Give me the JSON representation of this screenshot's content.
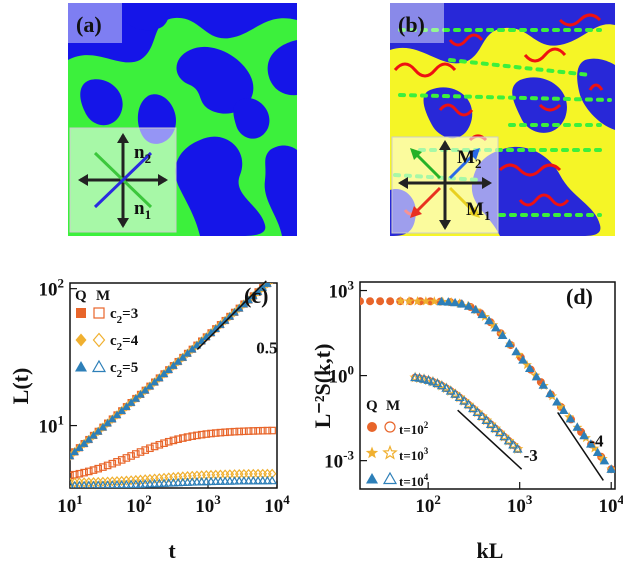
{
  "panels": {
    "a": {
      "label": "(a)",
      "inset": {
        "n2": "n",
        "n2_sub": "2",
        "n1": "n",
        "n1_sub": "1"
      }
    },
    "b": {
      "label": "(b)",
      "inset": {
        "m2": "M",
        "m2_sub": "2",
        "m1": "M",
        "m1_sub": "1"
      }
    }
  },
  "colors": {
    "blue": "#1515e8",
    "green": "#3cf03c",
    "yellow": "#f5f526",
    "red": "#ee1111",
    "orange": "#e8652a",
    "gold": "#f0b030",
    "steel": "#2d7fb8"
  },
  "chart_data": [
    {
      "id": "c",
      "type": "scatter",
      "panel_label": "(c)",
      "xlabel": "t",
      "ylabel": "L(t)",
      "xscale": "log",
      "yscale": "log",
      "xlim": [
        10,
        10000
      ],
      "ylim": [
        3.5,
        110
      ],
      "xticks": [
        {
          "v": 10,
          "b": "10",
          "e": "1"
        },
        {
          "v": 100,
          "b": "10",
          "e": "2"
        },
        {
          "v": 1000,
          "b": "10",
          "e": "3"
        },
        {
          "v": 10000,
          "b": "10",
          "e": "4"
        }
      ],
      "yticks": [
        {
          "v": 10,
          "b": "10",
          "e": "1"
        },
        {
          "v": 100,
          "b": "10",
          "e": "2"
        }
      ],
      "legend_header": {
        "q": "Q",
        "m": "M"
      },
      "legend": [
        {
          "label": "c",
          "sub": "2",
          "rest": "=3",
          "color": "#e8652a",
          "marker": "square"
        },
        {
          "label": "c",
          "sub": "2",
          "rest": "=4",
          "color": "#f0b030",
          "marker": "diamond"
        },
        {
          "label": "c",
          "sub": "2",
          "rest": "=5",
          "color": "#2d7fb8",
          "marker": "triangle"
        }
      ],
      "reference_line": {
        "slope_label": "0.5",
        "x": [
          700,
          7000
        ],
        "y": [
          36,
          114
        ]
      },
      "series": [
        {
          "name": "Q c2=3",
          "marker": "square",
          "filled": true,
          "color": "#e8652a",
          "model": "power",
          "x_range": [
            10,
            8500
          ],
          "y_start": 6.0,
          "exponent": 0.44
        },
        {
          "name": "Q c2=4",
          "marker": "diamond",
          "filled": true,
          "color": "#f0b030",
          "model": "power",
          "x_range": [
            10,
            8500
          ],
          "y_start": 6.0,
          "exponent": 0.44
        },
        {
          "name": "Q c2=5",
          "marker": "triangle",
          "filled": true,
          "color": "#2d7fb8",
          "model": "power",
          "x_range": [
            10,
            8500
          ],
          "y_start": 6.0,
          "exponent": 0.44
        },
        {
          "name": "M c2=3",
          "marker": "square",
          "filled": false,
          "color": "#e8652a",
          "model": "saturate",
          "x_range": [
            10,
            8500
          ],
          "y_start": 3.9,
          "y_end": 9.2,
          "t_half": 120
        },
        {
          "name": "M c2=4",
          "marker": "diamond",
          "filled": false,
          "color": "#f0b030",
          "model": "saturate",
          "x_range": [
            10,
            8500
          ],
          "y_start": 3.8,
          "y_end": 4.45,
          "t_half": 200
        },
        {
          "name": "M c2=5",
          "marker": "triangle",
          "filled": false,
          "color": "#2d7fb8",
          "model": "saturate",
          "x_range": [
            10,
            8500
          ],
          "y_start": 3.62,
          "y_end": 3.95,
          "t_half": 250
        }
      ]
    },
    {
      "id": "d",
      "type": "scatter",
      "panel_label": "(d)",
      "xlabel": "kL",
      "ylabel": "L⁻²S(k,t)",
      "xscale": "log",
      "yscale": "log",
      "xlim": [
        18,
        11000
      ],
      "ylim": [
        0.0001,
        2000
      ],
      "xticks": [
        {
          "v": 100,
          "b": "10",
          "e": "2"
        },
        {
          "v": 1000,
          "b": "10",
          "e": "3"
        },
        {
          "v": 10000,
          "b": "10",
          "e": "4"
        }
      ],
      "yticks": [
        {
          "v": 0.001,
          "b": "10",
          "e": "-3"
        },
        {
          "v": 1,
          "b": "10",
          "e": "0"
        },
        {
          "v": 1000,
          "b": "10",
          "e": "3"
        }
      ],
      "legend_header": {
        "q": "Q",
        "m": "M"
      },
      "legend": [
        {
          "label": "t=10",
          "sup": "2",
          "color": "#e8652a",
          "marker": "circle"
        },
        {
          "label": "t=10",
          "sup": "3",
          "color": "#f0b030",
          "marker": "star"
        },
        {
          "label": "t=10",
          "sup": "4",
          "color": "#2d7fb8",
          "marker": "triangle"
        }
      ],
      "reference_lines": [
        {
          "label": "-3",
          "x": [
            210,
            1050
          ],
          "y": [
            0.06,
            0.0005
          ]
        },
        {
          "label": "-4",
          "x": [
            2600,
            8200
          ],
          "y": [
            0.05,
            0.0002
          ]
        }
      ],
      "series": [
        {
          "name": "Q t=10^2",
          "marker": "circle",
          "filled": true,
          "color": "#e8652a",
          "model": "porod",
          "x_range": [
            18,
            10000
          ],
          "amp": 420,
          "knee": 330,
          "power": 4
        },
        {
          "name": "Q t=10^3",
          "marker": "star",
          "filled": true,
          "color": "#f0b030",
          "model": "porod",
          "x_range": [
            50,
            10000
          ],
          "amp": 420,
          "knee": 330,
          "power": 4
        },
        {
          "name": "Q t=10^4",
          "marker": "triangle",
          "filled": true,
          "color": "#2d7fb8",
          "model": "porod",
          "x_range": [
            140,
            10000
          ],
          "amp": 420,
          "knee": 330,
          "power": 4
        },
        {
          "name": "M t=10^2",
          "marker": "circle",
          "filled": false,
          "color": "#e8652a",
          "model": "porod",
          "x_range": [
            72,
            950
          ],
          "amp": 1.0,
          "knee": 130,
          "power": 3
        },
        {
          "name": "M t=10^3",
          "marker": "star",
          "filled": false,
          "color": "#f0b030",
          "model": "porod",
          "x_range": [
            72,
            950
          ],
          "amp": 1.0,
          "knee": 130,
          "power": 3
        },
        {
          "name": "M t=10^4",
          "marker": "triangle",
          "filled": false,
          "color": "#2d7fb8",
          "model": "porod",
          "x_range": [
            72,
            950
          ],
          "amp": 1.0,
          "knee": 130,
          "power": 3
        }
      ]
    }
  ]
}
